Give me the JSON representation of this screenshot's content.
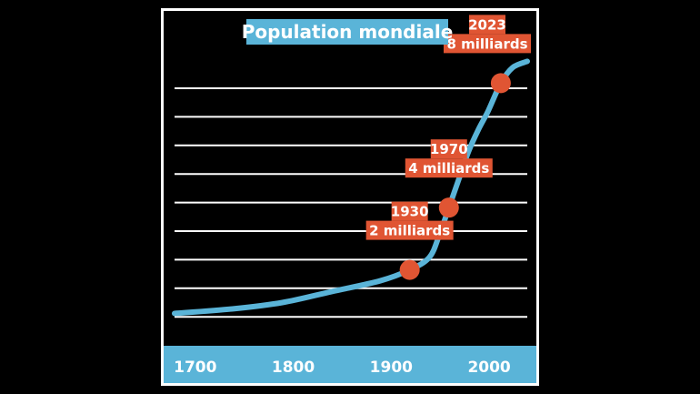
{
  "chart_data": {
    "type": "line",
    "title": "Population mondiale",
    "xlabel": "",
    "ylabel": "",
    "x_ticks": [
      "1700",
      "1800",
      "1900",
      "2000"
    ],
    "xlim": [
      1690,
      2050
    ],
    "ylim": [
      0,
      8.8
    ],
    "grid": true,
    "series": [
      {
        "name": "Population mondiale",
        "x": [
          1690,
          1750,
          1800,
          1850,
          1900,
          1930,
          1950,
          1960,
          1970,
          1980,
          1990,
          2000,
          2010,
          2023,
          2035,
          2050
        ],
        "values": [
          0.6,
          0.75,
          0.95,
          1.3,
          1.65,
          2.0,
          2.4,
          3.1,
          4.0,
          4.9,
          5.8,
          6.5,
          7.1,
          8.0,
          8.5,
          8.7
        ]
      }
    ],
    "annotations": [
      {
        "year_label": "1930",
        "value_label": "2 milliards",
        "x": 1930,
        "y": 2.0
      },
      {
        "year_label": "1970",
        "value_label": "4 milliards",
        "x": 1970,
        "y": 4.0
      },
      {
        "year_label": "2023",
        "value_label": "8 milliards",
        "x": 2023,
        "y": 8.0
      }
    ]
  },
  "colors": {
    "background": "#000000",
    "frame": "#ffffff",
    "line": "#5ab4d8",
    "axis_band": "#5ab4d8",
    "title_bg": "#5ab4d8",
    "marker": "#e05533",
    "label_bg": "#e05533",
    "text": "#ffffff",
    "gridline": "#ffffff"
  }
}
